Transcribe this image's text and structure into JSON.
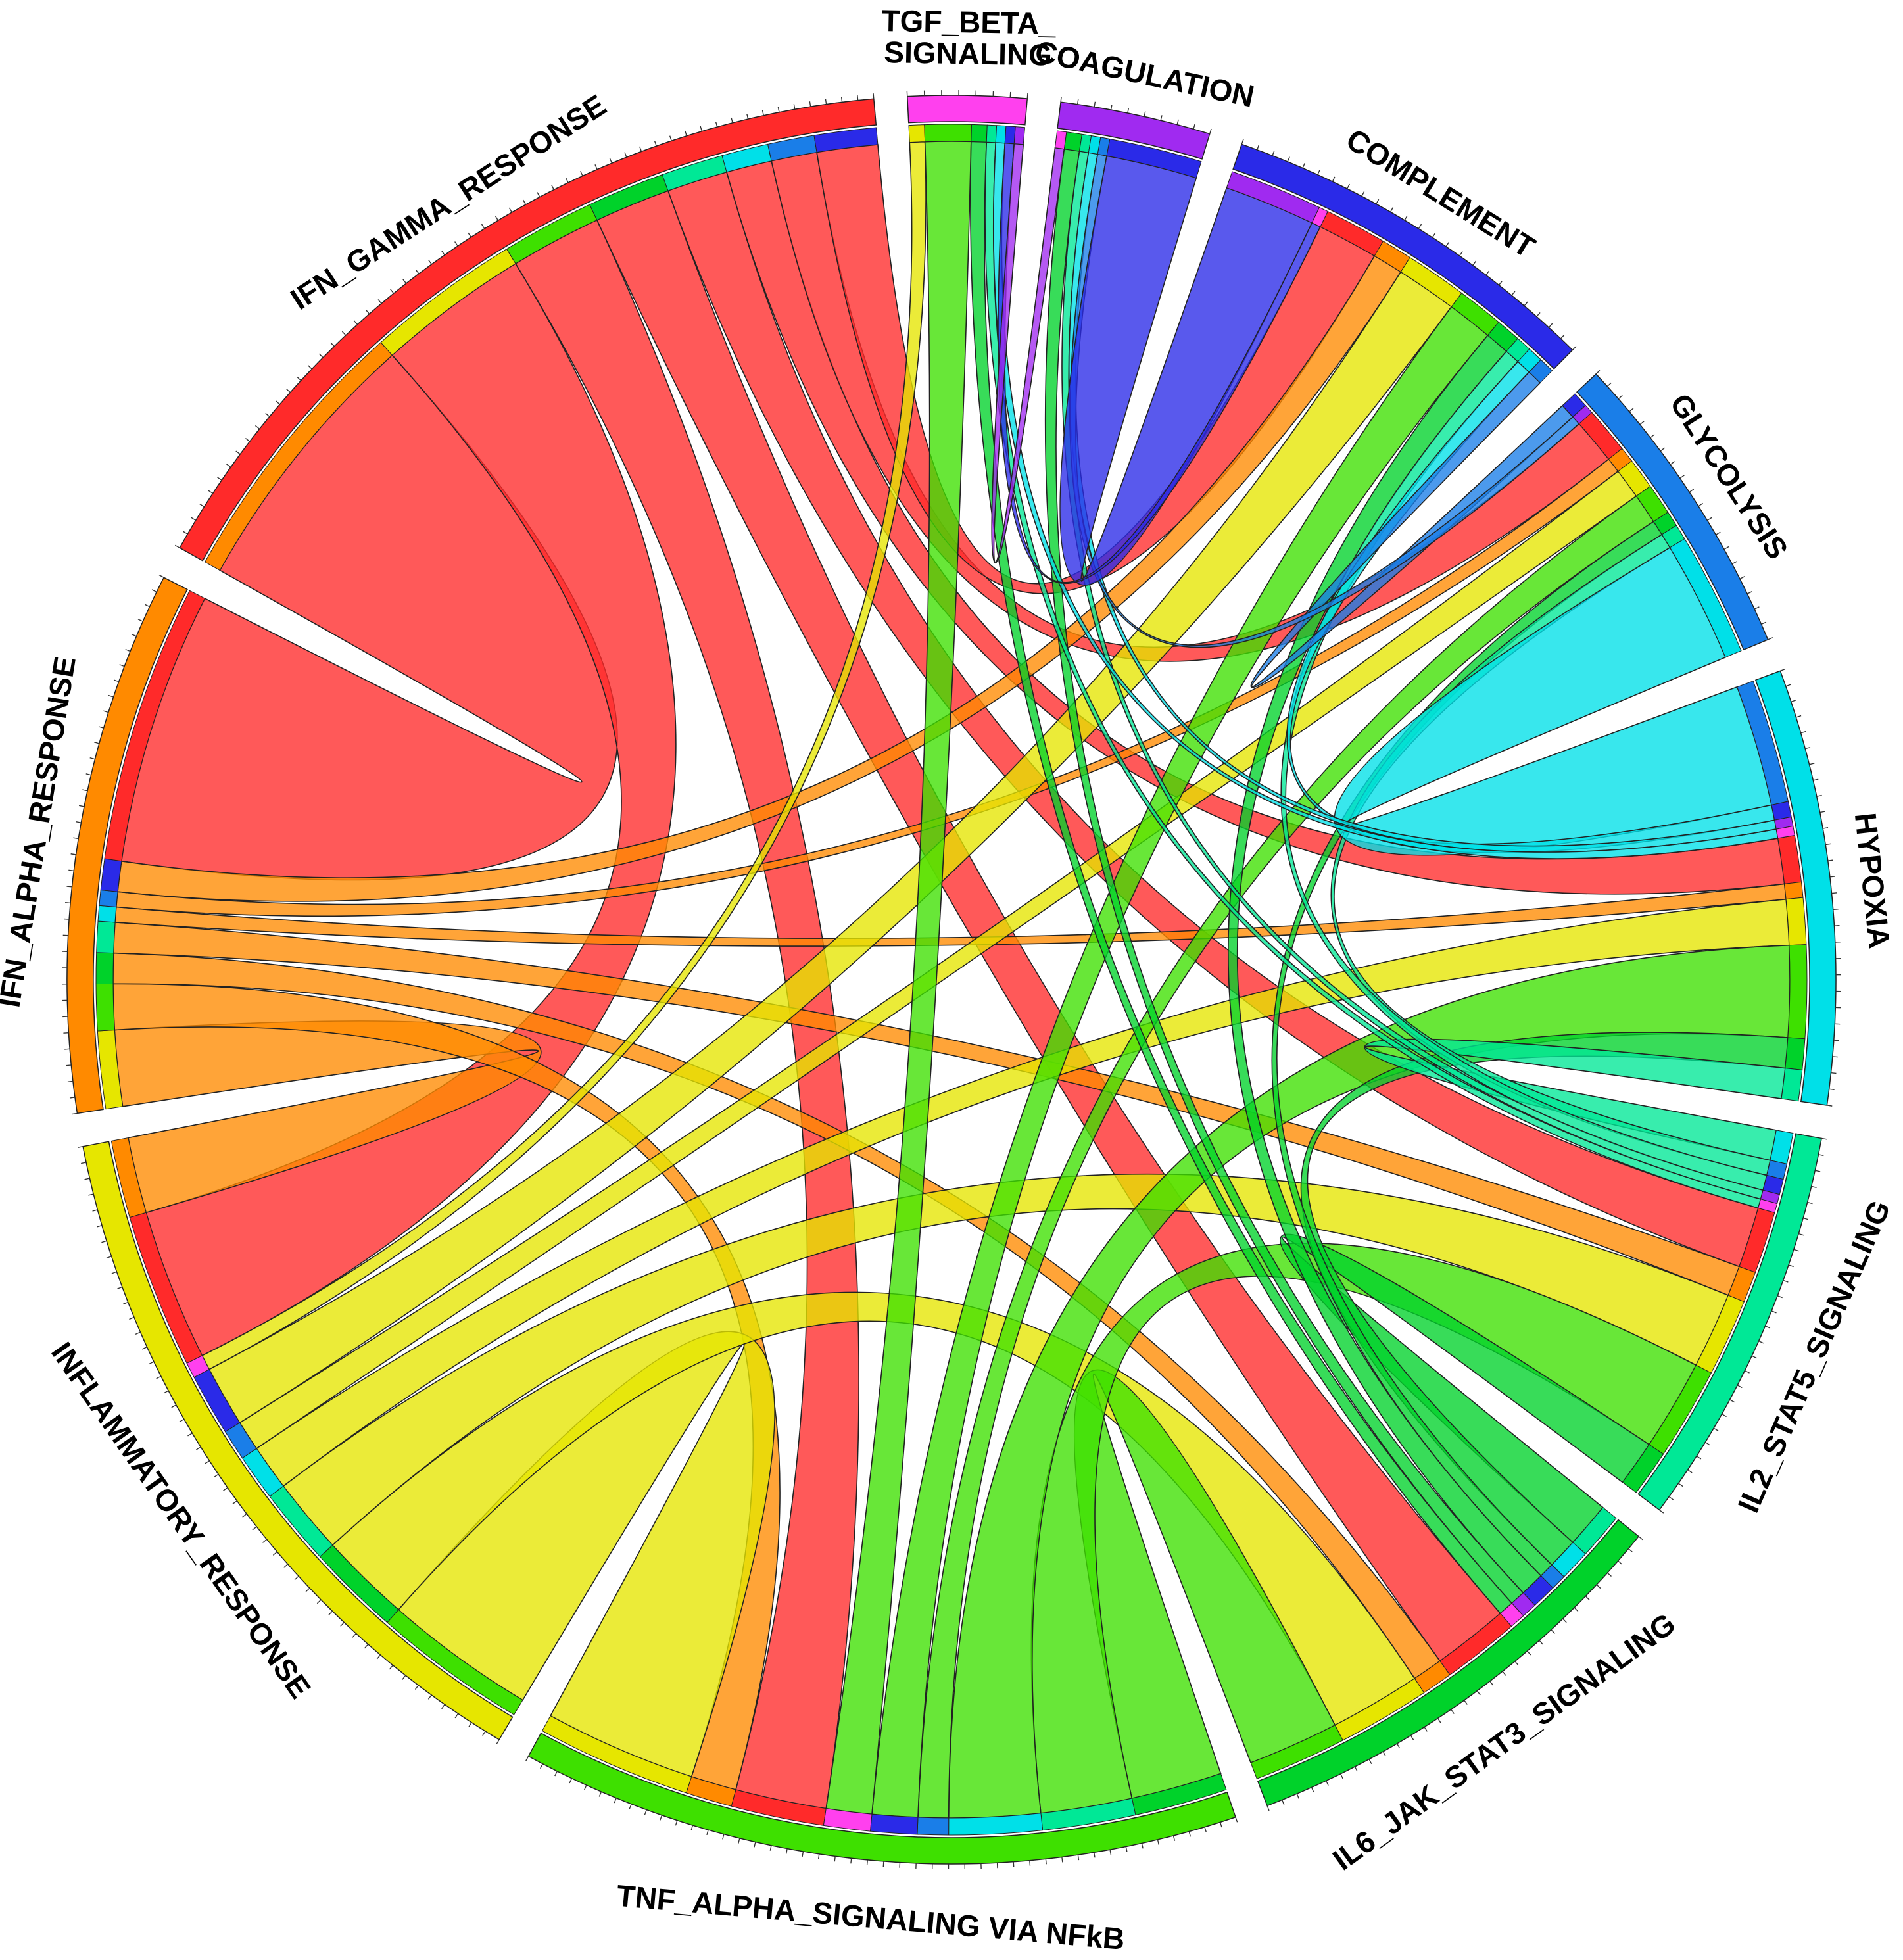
{
  "diagram": {
    "type": "chord",
    "sectors": [
      {
        "id": "tgf",
        "label_lines": [
          "TGF_BETA_",
          "SIGNALING"
        ],
        "color": "#ff40ee",
        "weight": 3
      },
      {
        "id": "coag",
        "label_lines": [
          "COAGULATION"
        ],
        "color": "#a02af0",
        "weight": 6
      },
      {
        "id": "compl",
        "label_lines": [
          "COMPLEMENT"
        ],
        "color": "#2a2ae8",
        "weight": 9
      },
      {
        "id": "glyc",
        "label_lines": [
          "GLYCOLYSIS"
        ],
        "color": "#1a7ee8",
        "weight": 8
      },
      {
        "id": "hypo",
        "label_lines": [
          "HYPOXIA"
        ],
        "color": "#00e0e8",
        "weight": 12
      },
      {
        "id": "il2",
        "label_lines": [
          "IL2_STAT5_SIGNALING"
        ],
        "color": "#00e896",
        "weight": 13
      },
      {
        "id": "il6",
        "label_lines": [
          "IL6_JAK_STAT3_SIGNALING"
        ],
        "color": "#00d22a",
        "weight": 10
      },
      {
        "id": "tnf",
        "label_lines": [
          "TNF_ALPHA_SIGNALING VIA NFkB"
        ],
        "color": "#3ee000",
        "weight": 18
      },
      {
        "id": "infl",
        "label_lines": [
          "INFLAMMATORY_RESPONSE"
        ],
        "color": "#e6e600",
        "weight": 16
      },
      {
        "id": "ifna",
        "label_lines": [
          "IFN_ALPHA_RESPONSE"
        ],
        "color": "#ff8a00",
        "weight": 12
      },
      {
        "id": "ifng",
        "label_lines": [
          "IFN_GAMMA_RESPONSE"
        ],
        "color": "#ff2a2a",
        "weight": 19
      }
    ],
    "links": [
      {
        "a": "ifng",
        "b": "ifna",
        "value": 9
      },
      {
        "a": "ifng",
        "b": "infl",
        "value": 5
      },
      {
        "a": "ifng",
        "b": "tnf",
        "value": 3
      },
      {
        "a": "ifng",
        "b": "il6",
        "value": 2.5
      },
      {
        "a": "ifng",
        "b": "il2",
        "value": 2
      },
      {
        "a": "ifng",
        "b": "hypo",
        "value": 1.5
      },
      {
        "a": "ifng",
        "b": "glyc",
        "value": 1.5
      },
      {
        "a": "ifng",
        "b": "compl",
        "value": 2
      },
      {
        "a": "ifna",
        "b": "infl",
        "value": 2.5
      },
      {
        "a": "ifna",
        "b": "tnf",
        "value": 1.5
      },
      {
        "a": "ifna",
        "b": "il6",
        "value": 1
      },
      {
        "a": "ifna",
        "b": "il2",
        "value": 1
      },
      {
        "a": "ifna",
        "b": "hypo",
        "value": 0.5
      },
      {
        "a": "ifna",
        "b": "glyc",
        "value": 0.5
      },
      {
        "a": "ifna",
        "b": "compl",
        "value": 1
      },
      {
        "a": "infl",
        "b": "tnf",
        "value": 5
      },
      {
        "a": "infl",
        "b": "il6",
        "value": 3
      },
      {
        "a": "infl",
        "b": "il2",
        "value": 2.5
      },
      {
        "a": "infl",
        "b": "hypo",
        "value": 1.5
      },
      {
        "a": "infl",
        "b": "glyc",
        "value": 1
      },
      {
        "a": "infl",
        "b": "compl",
        "value": 2
      },
      {
        "a": "infl",
        "b": "tgf",
        "value": 0.5
      },
      {
        "a": "tnf",
        "b": "il6",
        "value": 3
      },
      {
        "a": "tnf",
        "b": "il2",
        "value": 3
      },
      {
        "a": "tnf",
        "b": "hypo",
        "value": 3
      },
      {
        "a": "tnf",
        "b": "glyc",
        "value": 1
      },
      {
        "a": "tnf",
        "b": "compl",
        "value": 1.5
      },
      {
        "a": "tnf",
        "b": "tgf",
        "value": 1.5
      },
      {
        "a": "il6",
        "b": "il2",
        "value": 1.5
      },
      {
        "a": "il6",
        "b": "hypo",
        "value": 1
      },
      {
        "a": "il6",
        "b": "glyc",
        "value": 0.5
      },
      {
        "a": "il6",
        "b": "compl",
        "value": 0.8
      },
      {
        "a": "il6",
        "b": "coag",
        "value": 0.5
      },
      {
        "a": "il6",
        "b": "tgf",
        "value": 0.5
      },
      {
        "a": "il2",
        "b": "hypo",
        "value": 1
      },
      {
        "a": "il2",
        "b": "glyc",
        "value": 0.5
      },
      {
        "a": "il2",
        "b": "compl",
        "value": 0.5
      },
      {
        "a": "il2",
        "b": "coag",
        "value": 0.3
      },
      {
        "a": "il2",
        "b": "tgf",
        "value": 0.3
      },
      {
        "a": "hypo",
        "b": "glyc",
        "value": 4
      },
      {
        "a": "hypo",
        "b": "compl",
        "value": 0.5
      },
      {
        "a": "hypo",
        "b": "coag",
        "value": 0.3
      },
      {
        "a": "hypo",
        "b": "tgf",
        "value": 0.3
      },
      {
        "a": "glyc",
        "b": "compl",
        "value": 0.5
      },
      {
        "a": "glyc",
        "b": "coag",
        "value": 0.3
      },
      {
        "a": "compl",
        "b": "coag",
        "value": 3
      },
      {
        "a": "compl",
        "b": "tgf",
        "value": 0.3
      },
      {
        "a": "coag",
        "b": "tgf",
        "value": 0.3
      }
    ]
  }
}
